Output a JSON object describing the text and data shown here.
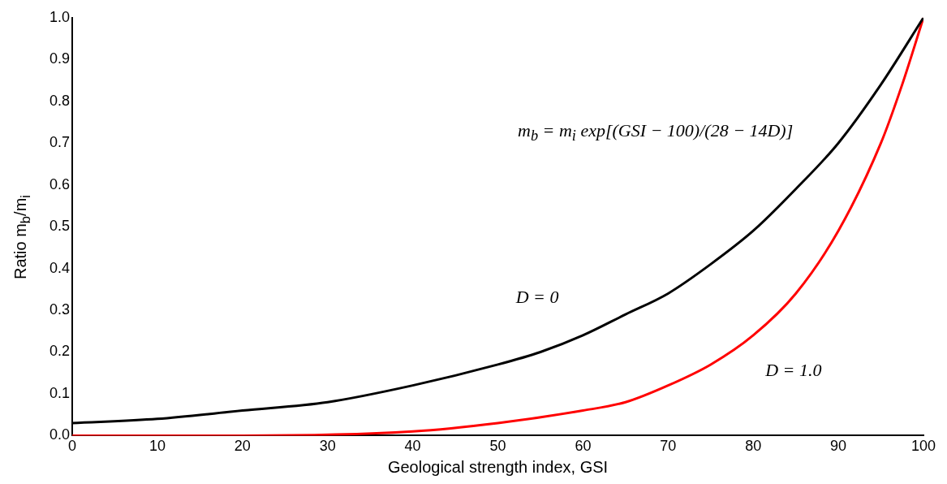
{
  "chart_data": {
    "type": "line",
    "xlabel": "Geological strength index, GSI",
    "ylabel": "Ratio m$_{b}$/m$_{i}$",
    "annotations": [
      "m$_{b}$ = m$_{i}$ exp[(GSI − 100)/(28 − 14D)]"
    ],
    "xlim": [
      0,
      100
    ],
    "xticks": [
      0,
      10,
      20,
      30,
      40,
      50,
      60,
      70,
      80,
      90,
      100
    ],
    "ylim": [
      0,
      1
    ],
    "yticks": [
      {
        "value": 0,
        "label": "0.0"
      },
      {
        "value": 0.1,
        "label": "0.1"
      },
      {
        "value": 0.2,
        "label": "0.2"
      },
      {
        "value": 0.3,
        "label": "0.3"
      },
      {
        "value": 0.4,
        "label": "0.4"
      },
      {
        "value": 0.5,
        "label": "0.5"
      },
      {
        "value": 0.6,
        "label": "0.6"
      },
      {
        "value": 0.7,
        "label": "0.7"
      },
      {
        "value": 0.8,
        "label": "0.8"
      },
      {
        "value": 0.9,
        "label": "0.9"
      },
      {
        "value": 1,
        "label": "1.0"
      }
    ],
    "grid": false,
    "legend": false,
    "marker": "none",
    "line_style": "solid",
    "series": [
      {
        "name": "D = 0",
        "color": "#000000",
        "x": [
          0,
          10,
          20,
          30,
          40,
          50,
          55,
          60,
          65,
          70,
          75,
          80,
          85,
          90,
          95,
          100
        ],
        "values": [
          0.03,
          0.04,
          0.06,
          0.08,
          0.12,
          0.17,
          0.2,
          0.24,
          0.29,
          0.34,
          0.41,
          0.49,
          0.59,
          0.7,
          0.84,
          1
        ]
      },
      {
        "name": "D = 1.0",
        "color": "#ff0000",
        "x": [
          0,
          20,
          40,
          50,
          60,
          65,
          70,
          75,
          80,
          85,
          90,
          95,
          97.5,
          100
        ],
        "values": [
          0,
          0,
          0.01,
          0.03,
          0.06,
          0.08,
          0.12,
          0.17,
          0.24,
          0.34,
          0.49,
          0.7,
          0.84,
          1
        ]
      }
    ]
  }
}
